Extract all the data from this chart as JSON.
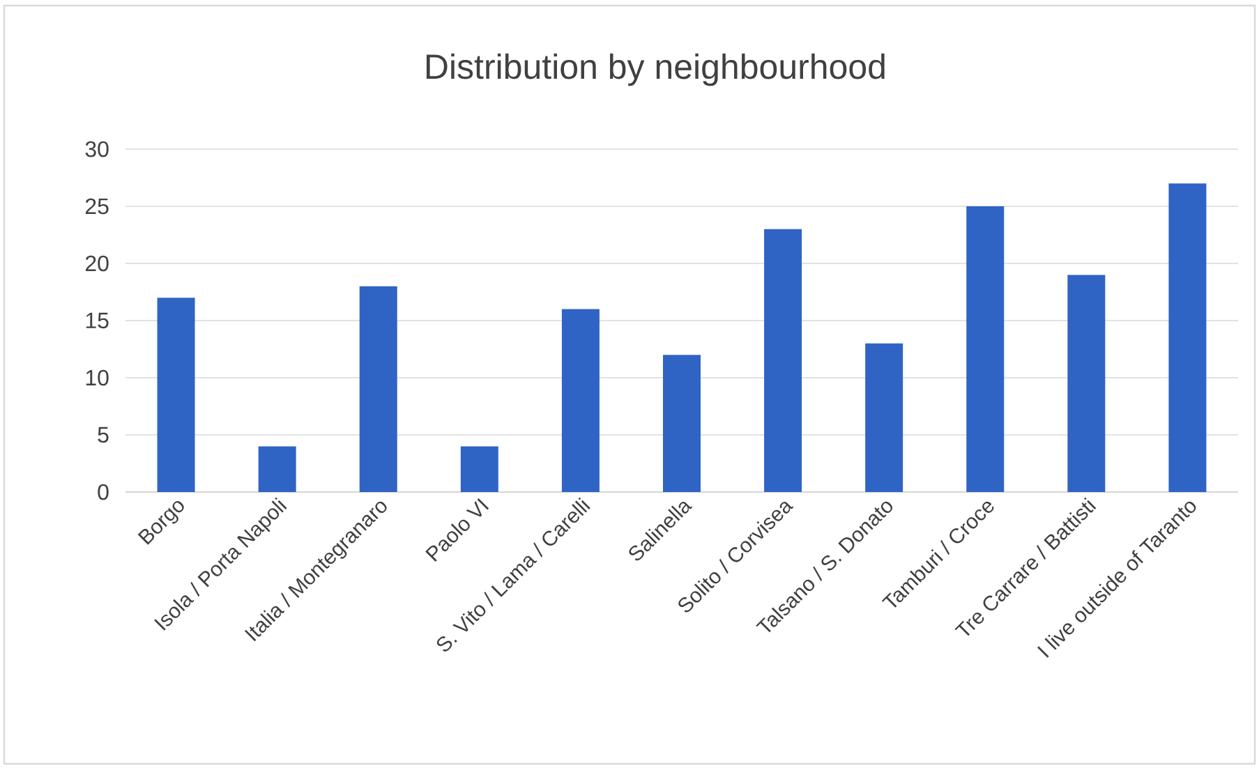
{
  "chart_data": {
    "type": "bar",
    "title": "Distribution by neighbourhood",
    "categories": [
      "Borgo",
      "Isola / Porta Napoli",
      "Italia / Montegranaro",
      "Paolo VI",
      "S. Vito / Lama / Carelli",
      "Salinella",
      "Solito / Corvisea",
      "Talsano / S. Donato",
      "Tamburi / Croce",
      "Tre Carrare / Battisti",
      "I live outside of Taranto"
    ],
    "values": [
      17,
      4,
      18,
      4,
      16,
      12,
      23,
      13,
      25,
      19,
      27
    ],
    "color": "#2f64c4",
    "ylim": [
      0,
      30
    ],
    "yticks": [
      0,
      5,
      10,
      15,
      20,
      25,
      30
    ],
    "grid": "y"
  }
}
